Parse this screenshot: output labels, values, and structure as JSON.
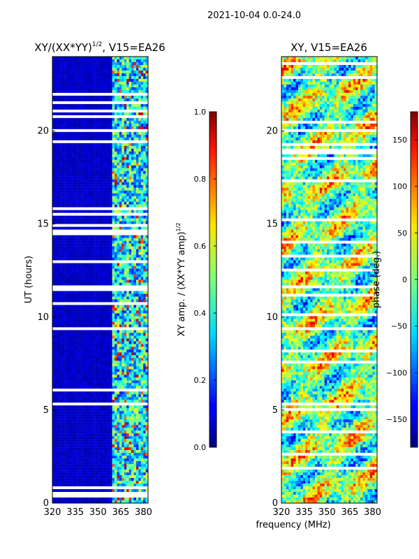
{
  "figure": {
    "suptitle": "2021-10-04 0.0-24.0",
    "xlabel": "frequency (MHz)",
    "ylabel": "UT (hours)"
  },
  "chart_data": [
    {
      "type": "heatmap",
      "title_main": "XY/(XX*YY)",
      "title_sup": "1/2",
      "title_rest": ", V15=EA26",
      "x_range": [
        320,
        383
      ],
      "y_range": [
        0,
        24
      ],
      "x_ticks": [
        320,
        335,
        350,
        365,
        380
      ],
      "y_ticks": [
        0,
        5,
        10,
        15,
        20
      ],
      "colormap": "jet",
      "colorbar": {
        "label_main": "XY amp. / (XX*YY amp)",
        "label_sup": "1/2",
        "range": [
          0.0,
          1.0
        ],
        "ticks": [
          "0.0",
          "0.2",
          "0.4",
          "0.6",
          "0.8",
          "1.0"
        ]
      }
    },
    {
      "type": "heatmap",
      "title": "XY, V15=EA26",
      "x_range": [
        320,
        383
      ],
      "y_range": [
        0,
        24
      ],
      "x_ticks": [
        320,
        335,
        350,
        365,
        380
      ],
      "y_ticks": [
        0,
        5,
        10,
        15,
        20
      ],
      "colormap": "jet",
      "colorbar": {
        "label": "phase (deg.)",
        "range": [
          -180,
          180
        ],
        "ticks": [
          "-150",
          "-100",
          "-50",
          "0",
          "50",
          "100",
          "150"
        ]
      }
    }
  ]
}
